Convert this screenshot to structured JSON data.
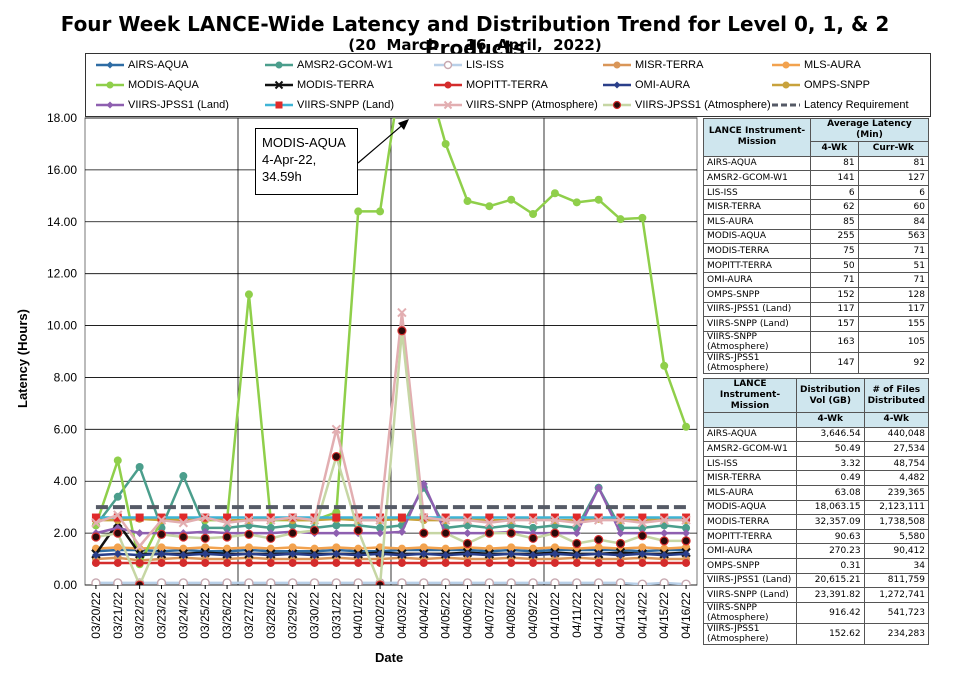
{
  "header": {
    "title": "Four Week LANCE-Wide Latency and Distribution Trend for Level 0, 1, & 2 Products",
    "subtitle": "(20  March   - 16  April,  2022)"
  },
  "callout": {
    "line1": "MODIS-AQUA",
    "line2": "4-Apr-22,",
    "line3": "34.59h"
  },
  "chart_data": {
    "type": "line",
    "xlabel": "Date",
    "ylabel": "Latency (Hours)",
    "ylim": [
      0,
      18
    ],
    "yticks": [
      "0.00",
      "2.00",
      "4.00",
      "6.00",
      "8.00",
      "10.00",
      "12.00",
      "14.00",
      "16.00",
      "18.00"
    ],
    "categories": [
      "03/20/22",
      "03/21/22",
      "03/22/22",
      "03/23/22",
      "03/24/22",
      "03/25/22",
      "03/26/22",
      "03/27/22",
      "03/28/22",
      "03/29/22",
      "03/30/22",
      "03/31/22",
      "04/01/22",
      "04/02/22",
      "04/03/22",
      "04/04/22",
      "04/05/22",
      "04/06/22",
      "04/07/22",
      "04/08/22",
      "04/09/22",
      "04/10/22",
      "04/11/22",
      "04/12/22",
      "04/13/22",
      "04/14/22",
      "04/15/22",
      "04/16/22"
    ],
    "legend_position": "top",
    "series": [
      {
        "name": "AIRS-AQUA",
        "color": "#2e6ca4",
        "marker": "diamond",
        "values": [
          1.3,
          1.35,
          1.35,
          1.3,
          1.35,
          1.3,
          1.3,
          1.35,
          1.3,
          1.3,
          1.3,
          1.35,
          1.3,
          1.3,
          1.35,
          1.35,
          1.35,
          1.35,
          1.3,
          1.35,
          1.3,
          1.35,
          1.35,
          1.35,
          1.35,
          1.3,
          1.35,
          1.35
        ]
      },
      {
        "name": "AMSR2-GCOM-W1",
        "color": "#4b9e8c",
        "marker": "circle",
        "values": [
          2.3,
          3.4,
          4.55,
          2.2,
          4.2,
          2.2,
          2.2,
          2.3,
          2.2,
          2.3,
          2.2,
          2.3,
          2.3,
          2.2,
          2.3,
          3.75,
          2.2,
          2.3,
          2.2,
          2.3,
          2.2,
          2.3,
          2.2,
          3.75,
          2.2,
          2.2,
          2.3,
          2.2
        ]
      },
      {
        "name": "LIS-ISS",
        "color": "#b9d0e8",
        "marker": "open-circle",
        "values": [
          0.08,
          0.08,
          0.08,
          0.08,
          0.08,
          0.08,
          0.08,
          0.08,
          0.08,
          0.08,
          0.08,
          0.08,
          0.08,
          0.08,
          0.08,
          0.08,
          0.08,
          0.08,
          0.08,
          0.08,
          0.08,
          0.08,
          0.08,
          0.08,
          0.08,
          0.03,
          0.08,
          0.03
        ]
      },
      {
        "name": "MISR-TERRA",
        "color": "#d99658",
        "marker": "circle",
        "values": [
          1.0,
          1.05,
          0.95,
          1.0,
          1.05,
          1.0,
          1.0,
          1.05,
          1.0,
          1.0,
          1.0,
          1.05,
          1.0,
          1.0,
          1.05,
          1.0,
          1.05,
          1.0,
          1.0,
          1.05,
          1.0,
          1.0,
          1.05,
          1.0,
          1.0,
          1.05,
          1.0,
          1.0
        ]
      },
      {
        "name": "MLS-AURA",
        "color": "#f2a24e",
        "marker": "circle",
        "values": [
          1.4,
          1.45,
          1.4,
          1.45,
          1.4,
          1.45,
          1.4,
          1.45,
          1.4,
          1.45,
          1.4,
          1.45,
          1.4,
          1.45,
          1.4,
          1.45,
          1.4,
          1.45,
          1.4,
          1.45,
          1.4,
          1.45,
          1.4,
          1.45,
          1.4,
          1.45,
          1.4,
          1.45
        ]
      },
      {
        "name": "MODIS-AQUA",
        "color": "#8fcf4a",
        "marker": "circle",
        "values": [
          2.3,
          4.8,
          0.8,
          2.5,
          2.6,
          2.5,
          2.5,
          11.2,
          2.5,
          2.5,
          2.5,
          2.8,
          14.4,
          14.4,
          34.59,
          34.59,
          17.0,
          14.8,
          14.6,
          14.85,
          14.3,
          15.1,
          14.75,
          14.85,
          14.1,
          14.15,
          8.45,
          6.1
        ]
      },
      {
        "name": "MODIS-TERRA",
        "color": "#111111",
        "marker": "x",
        "values": [
          1.2,
          2.4,
          1.2,
          1.2,
          1.2,
          1.25,
          1.2,
          1.2,
          1.2,
          1.2,
          1.2,
          1.2,
          1.2,
          1.25,
          1.2,
          1.2,
          1.2,
          1.25,
          1.2,
          1.2,
          1.2,
          1.25,
          1.2,
          1.2,
          1.25,
          1.2,
          1.2,
          1.25
        ]
      },
      {
        "name": "MOPITT-TERRA",
        "color": "#d42c2c",
        "marker": "circle",
        "values": [
          0.85,
          0.85,
          0.85,
          0.85,
          0.85,
          0.85,
          0.85,
          0.85,
          0.85,
          0.85,
          0.85,
          0.85,
          0.85,
          0.85,
          0.85,
          0.85,
          0.85,
          0.85,
          0.85,
          0.85,
          0.85,
          0.85,
          0.85,
          0.85,
          0.85,
          0.85,
          0.85,
          0.85
        ]
      },
      {
        "name": "OMI-AURA",
        "color": "#2a3f8a",
        "marker": "diamond",
        "values": [
          1.15,
          1.2,
          1.15,
          1.2,
          1.15,
          1.2,
          1.15,
          1.2,
          1.15,
          1.2,
          1.15,
          1.2,
          1.15,
          1.2,
          1.15,
          1.2,
          1.15,
          1.2,
          1.15,
          1.2,
          1.15,
          1.2,
          1.15,
          1.2,
          1.15,
          1.2,
          1.15,
          1.2
        ]
      },
      {
        "name": "OMPS-SNPP",
        "color": "#c8a23c",
        "marker": "circle",
        "values": [
          2.5,
          2.5,
          2.55,
          2.5,
          2.5,
          2.55,
          2.5,
          2.5,
          2.55,
          2.5,
          2.5,
          2.55,
          2.5,
          2.5,
          2.55,
          2.5,
          2.5,
          2.55,
          2.5,
          2.5,
          2.55,
          2.5,
          2.5,
          2.55,
          2.5,
          2.5,
          2.55,
          2.5
        ]
      },
      {
        "name": "VIIRS-JPSS1 (Land)",
        "color": "#8e5fb0",
        "marker": "diamond",
        "values": [
          2.0,
          2.2,
          2.0,
          2.0,
          2.0,
          2.05,
          2.0,
          2.0,
          2.0,
          2.05,
          2.0,
          2.0,
          2.0,
          2.0,
          2.05,
          3.9,
          2.0,
          2.0,
          2.0,
          2.05,
          2.0,
          2.0,
          2.0,
          3.75,
          2.0,
          2.0,
          2.0,
          2.0
        ]
      },
      {
        "name": "VIIRS-SNPP (Land)",
        "color": "#3fb4d6",
        "marker": "square",
        "values": [
          2.6,
          2.6,
          2.6,
          2.6,
          2.6,
          2.6,
          2.6,
          2.6,
          2.6,
          2.6,
          2.6,
          2.6,
          2.6,
          2.6,
          2.6,
          2.6,
          2.6,
          2.6,
          2.6,
          2.6,
          2.6,
          2.6,
          2.6,
          2.6,
          2.6,
          2.6,
          2.6,
          2.6
        ]
      },
      {
        "name": "VIIRS-SNPP (Atmosphere)",
        "color": "#e2aeb1",
        "marker": "x",
        "values": [
          2.4,
          2.7,
          1.5,
          2.5,
          2.4,
          2.6,
          2.4,
          2.5,
          2.5,
          2.6,
          2.5,
          6.0,
          2.5,
          2.5,
          10.5,
          2.6,
          2.5,
          2.5,
          2.4,
          2.5,
          2.5,
          2.5,
          2.4,
          2.5,
          2.5,
          2.4,
          2.5,
          2.5
        ]
      },
      {
        "name": "VIIRS-JPSS1 (Atmosphere)",
        "color": "#c6d6a4",
        "marker": "dark-circle",
        "values": [
          1.85,
          2.0,
          0.0,
          1.95,
          1.85,
          1.8,
          1.85,
          1.95,
          1.8,
          2.0,
          2.1,
          4.95,
          2.1,
          0.0,
          9.8,
          2.0,
          2.0,
          1.6,
          2.0,
          2.0,
          1.8,
          2.0,
          1.6,
          1.75,
          1.6,
          1.9,
          1.7,
          1.7
        ]
      },
      {
        "name": "Latency Requirement",
        "color": "#555a66",
        "marker": "none",
        "dashed": true,
        "values": [
          3,
          3,
          3,
          3,
          3,
          3,
          3,
          3,
          3,
          3,
          3,
          3,
          3,
          3,
          3,
          3,
          3,
          3,
          3,
          3,
          3,
          3,
          3,
          3,
          3,
          3,
          3,
          3
        ]
      }
    ]
  },
  "latency_table": {
    "h1": "LANCE Instrument-Mission",
    "h2": "Average Latency (Min)",
    "c1": "4-Wk",
    "c2": "Curr-Wk",
    "rows": [
      {
        "name": "AIRS-AQUA",
        "wk4": "81",
        "curr": "81"
      },
      {
        "name": "AMSR2-GCOM-W1",
        "wk4": "141",
        "curr": "127"
      },
      {
        "name": "LIS-ISS",
        "wk4": "6",
        "curr": "6"
      },
      {
        "name": "MISR-TERRA",
        "wk4": "62",
        "curr": "60"
      },
      {
        "name": "MLS-AURA",
        "wk4": "85",
        "curr": "84"
      },
      {
        "name": "MODIS-AQUA",
        "wk4": "255",
        "curr": "563"
      },
      {
        "name": "MODIS-TERRA",
        "wk4": "75",
        "curr": "71"
      },
      {
        "name": "MOPITT-TERRA",
        "wk4": "50",
        "curr": "51"
      },
      {
        "name": "OMI-AURA",
        "wk4": "71",
        "curr": "71"
      },
      {
        "name": "OMPS-SNPP",
        "wk4": "152",
        "curr": "128"
      },
      {
        "name": "VIIRS-JPSS1 (Land)",
        "wk4": "117",
        "curr": "117"
      },
      {
        "name": "VIIRS-SNPP (Land)",
        "wk4": "157",
        "curr": "155"
      },
      {
        "name": "VIIRS-SNPP (Atmosphere)",
        "wk4": "163",
        "curr": "105"
      },
      {
        "name": "VIIRS-JPSS1 (Atmosphere)",
        "wk4": "147",
        "curr": "92"
      }
    ]
  },
  "distribution_table": {
    "h1": "LANCE Instrument-Mission",
    "h2": "Distribution Vol (GB)",
    "h3": "# of Files Distributed",
    "c1": "4-Wk",
    "c2": "4-Wk",
    "rows": [
      {
        "name": "AIRS-AQUA",
        "vol": "3,646.54",
        "files": "440,048"
      },
      {
        "name": "AMSR2-GCOM-W1",
        "vol": "50.49",
        "files": "27,534"
      },
      {
        "name": "LIS-ISS",
        "vol": "3.32",
        "files": "48,754"
      },
      {
        "name": "MISR-TERRA",
        "vol": "0.49",
        "files": "4,482"
      },
      {
        "name": "MLS-AURA",
        "vol": "63.08",
        "files": "239,365"
      },
      {
        "name": "MODIS-AQUA",
        "vol": "18,063.15",
        "files": "2,123,111"
      },
      {
        "name": "MODIS-TERRA",
        "vol": "32,357.09",
        "files": "1,738,508"
      },
      {
        "name": "MOPITT-TERRA",
        "vol": "90.63",
        "files": "5,580"
      },
      {
        "name": "OMI-AURA",
        "vol": "270.23",
        "files": "90,412"
      },
      {
        "name": "OMPS-SNPP",
        "vol": "0.31",
        "files": "34"
      },
      {
        "name": "VIIRS-JPSS1 (Land)",
        "vol": "20,615.21",
        "files": "811,759"
      },
      {
        "name": "VIIRS-SNPP (Land)",
        "vol": "23,391.82",
        "files": "1,272,741"
      },
      {
        "name": "VIIRS-SNPP (Atmosphere)",
        "vol": "916.42",
        "files": "541,723"
      },
      {
        "name": "VIIRS-JPSS1 (Atmosphere)",
        "vol": "152.62",
        "files": "234,283"
      }
    ]
  }
}
